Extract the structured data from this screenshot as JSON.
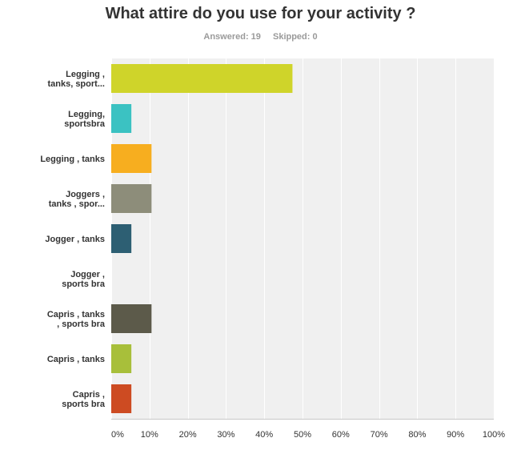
{
  "survey": {
    "title": "What attire do you use for your activity ?",
    "answered_label": "Answered: 19",
    "skipped_label": "Skipped: 0"
  },
  "chart_data": {
    "type": "bar",
    "orientation": "horizontal",
    "categories": [
      [
        "Legging ,",
        "tanks, sport..."
      ],
      [
        "Legging,",
        "sportsbra"
      ],
      [
        "Legging , tanks"
      ],
      [
        "Joggers ,",
        "tanks , spor..."
      ],
      [
        "Jogger , tanks"
      ],
      [
        "Jogger ,",
        "sports bra"
      ],
      [
        "Capris , tanks",
        ", sports bra"
      ],
      [
        "Capris , tanks"
      ],
      [
        "Capris ,",
        "sports bra"
      ]
    ],
    "values": [
      47.37,
      5.26,
      10.53,
      10.53,
      5.26,
      0,
      10.53,
      5.26,
      5.26
    ],
    "colors": [
      "#cfd42a",
      "#3bc2c2",
      "#f7ae1f",
      "#8d8d7a",
      "#2d5f73",
      "#8d8d7a",
      "#5c5a4a",
      "#a8bf3a",
      "#cd4b22"
    ],
    "xlim": [
      0,
      100
    ],
    "xticks": [
      "0%",
      "10%",
      "20%",
      "30%",
      "40%",
      "50%",
      "60%",
      "70%",
      "80%",
      "90%",
      "100%"
    ],
    "grid": true,
    "plot_background": "#f0f0f0"
  }
}
